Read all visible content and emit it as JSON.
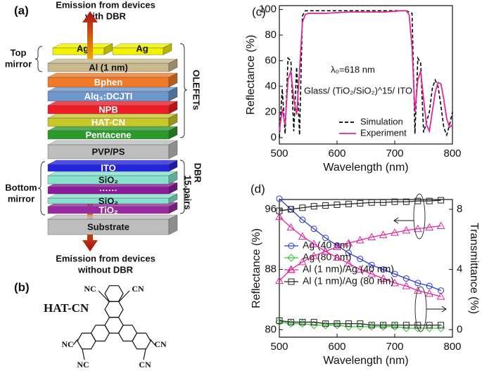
{
  "panel_a": {
    "label": "(a)",
    "emission_top": [
      "Emission from devices",
      "with DBR"
    ],
    "emission_bottom": [
      "Emission from devices",
      "without DBR"
    ],
    "top_mirror": [
      "Top",
      "mirror"
    ],
    "bottom_mirror": [
      "Bottom",
      "mirror"
    ],
    "olefets": "OLEFETs",
    "dbr": [
      "DBR",
      "15 pairs"
    ],
    "ag_pads": [
      {
        "label": "Ag",
        "color": "#f2f200"
      },
      {
        "label": "Ag",
        "color": "#f2f200"
      }
    ],
    "layers": [
      {
        "label": "Al (1 nm)",
        "color": "#c9b98c"
      },
      {
        "label": "Bphen",
        "color": "#f07a28"
      },
      {
        "label": "Alq₃:DCJTI",
        "color": "#6f96cc"
      },
      {
        "label": "NPB",
        "color": "#ee1c24"
      },
      {
        "label": "HAT-CN",
        "color": "#c8c82a"
      },
      {
        "label": "Pentacene",
        "color": "#2a9a2a"
      },
      {
        "label": "PVP/PS",
        "color": "#bdbdbd"
      },
      {
        "label": "ITO",
        "color": "#2424e0"
      },
      {
        "label": "SiO₂",
        "color": "#86e2cc"
      },
      {
        "label": "······",
        "color": "#8a1a9a"
      },
      {
        "label": "SiO₂",
        "color": "#86e2cc"
      },
      {
        "label": "TiO₂",
        "color": "#9a2aa0"
      },
      {
        "label": "Substrate",
        "color": "#bdbdbd"
      }
    ]
  },
  "panel_b": {
    "label": "(b)",
    "molecule": "HAT-CN",
    "groups": [
      "NC",
      "CN",
      "NC",
      "NC",
      "CN",
      "CN"
    ]
  },
  "chart_data": [
    {
      "type": "line",
      "panel": "(c)",
      "x": [
        500,
        505,
        510,
        515,
        520,
        525,
        530,
        535,
        540,
        545,
        550,
        555,
        560,
        580,
        600,
        620,
        640,
        660,
        680,
        700,
        710,
        715,
        720,
        725,
        730,
        735,
        740,
        745,
        750,
        755,
        760,
        765,
        770,
        775,
        780,
        785,
        790,
        795,
        800
      ],
      "series": [
        {
          "name": "Simulation",
          "color": "#000000",
          "dashed": true,
          "values": [
            0,
            38,
            3,
            62,
            60,
            5,
            55,
            2,
            95,
            99,
            99,
            99,
            99,
            99,
            99,
            99,
            99,
            99,
            99,
            99,
            99,
            99,
            99,
            98,
            97,
            3,
            62,
            58,
            4,
            12,
            20,
            38,
            45,
            40,
            25,
            8,
            2,
            10,
            20
          ]
        },
        {
          "name": "Experiment",
          "color": "#e0289a",
          "dashed": false,
          "values": [
            5,
            22,
            10,
            45,
            52,
            30,
            18,
            52,
            90,
            96,
            97,
            97,
            97,
            97,
            97.5,
            98,
            98,
            98,
            98,
            98.5,
            99,
            99,
            99,
            96,
            70,
            20,
            45,
            52,
            30,
            10,
            5,
            20,
            35,
            43,
            42,
            30,
            15,
            8,
            10
          ]
        }
      ],
      "xlim": [
        500,
        800
      ],
      "ylim": [
        -5,
        103
      ],
      "xticks": [
        500,
        600,
        700,
        800
      ],
      "yticks": [
        0,
        20,
        40,
        60,
        80,
        100
      ],
      "xlabel": "Wavelength (nm)",
      "ylabel": "Reflectance (%)",
      "annotations": [
        "λ₀=618 nm",
        "Glass/ (TiO₂/SiO₂)^15/ ITO"
      ]
    },
    {
      "type": "line",
      "panel": "(d)",
      "x": [
        500,
        520,
        540,
        560,
        580,
        600,
        620,
        640,
        660,
        680,
        700,
        720,
        740,
        760,
        780
      ],
      "series": [
        {
          "name": "Ag (40 nm)",
          "color": "#2a3ad8",
          "marker": "circle",
          "transmittance": [
            8.7,
            8.0,
            7.3,
            6.7,
            6.1,
            5.6,
            5.1,
            4.7,
            4.3,
            4.0,
            3.7,
            3.4,
            3.1,
            2.9,
            2.6
          ]
        },
        {
          "name": "Ag (80 nm)",
          "color": "#3cc43c",
          "marker": "diamond",
          "transmittance": [
            0.5,
            0.4,
            0.4,
            0.3,
            0.3,
            0.3,
            0.2,
            0.2,
            0.2,
            0.2,
            0.2,
            0.1,
            0.1,
            0.1,
            0.1
          ]
        },
        {
          "name": "Al (1 nm)/Ag (40 nm)",
          "color": "#e0289a",
          "marker": "triangle",
          "reflectance": [
            86.5,
            88.0,
            89.0,
            89.8,
            90.4,
            91.0,
            91.5,
            91.9,
            92.3,
            92.6,
            92.9,
            93.2,
            93.4,
            93.6,
            93.8
          ],
          "transmittance": [
            7.5,
            6.8,
            6.2,
            5.7,
            5.2,
            4.8,
            4.4,
            4.0,
            3.7,
            3.4,
            3.1,
            2.9,
            2.6,
            2.4,
            2.2
          ]
        },
        {
          "name": "Al (1 nm)/Ag (80 nm)",
          "color": "#222222",
          "marker": "square",
          "reflectance": [
            95.8,
            96.0,
            96.2,
            96.4,
            96.5,
            96.6,
            96.7,
            96.8,
            96.9,
            96.9,
            97.0,
            97.0,
            97.1,
            97.1,
            97.2
          ],
          "transmittance": [
            0.6,
            0.5,
            0.5,
            0.5,
            0.4,
            0.4,
            0.4,
            0.4,
            0.3,
            0.3,
            0.3,
            0.3,
            0.3,
            0.3,
            0.3
          ]
        }
      ],
      "xlim": [
        500,
        800
      ],
      "ylim": [
        79,
        97.3
      ],
      "y2lim": [
        -0.5,
        8.65
      ],
      "xticks": [
        500,
        600,
        700,
        800
      ],
      "yticks": [
        80,
        88,
        96
      ],
      "y2ticks": [
        0,
        4,
        8
      ],
      "xlabel": "Wavelength (nm)",
      "ylabel": "Reflectance (%)",
      "y2label": "Transmittance (%)"
    }
  ]
}
